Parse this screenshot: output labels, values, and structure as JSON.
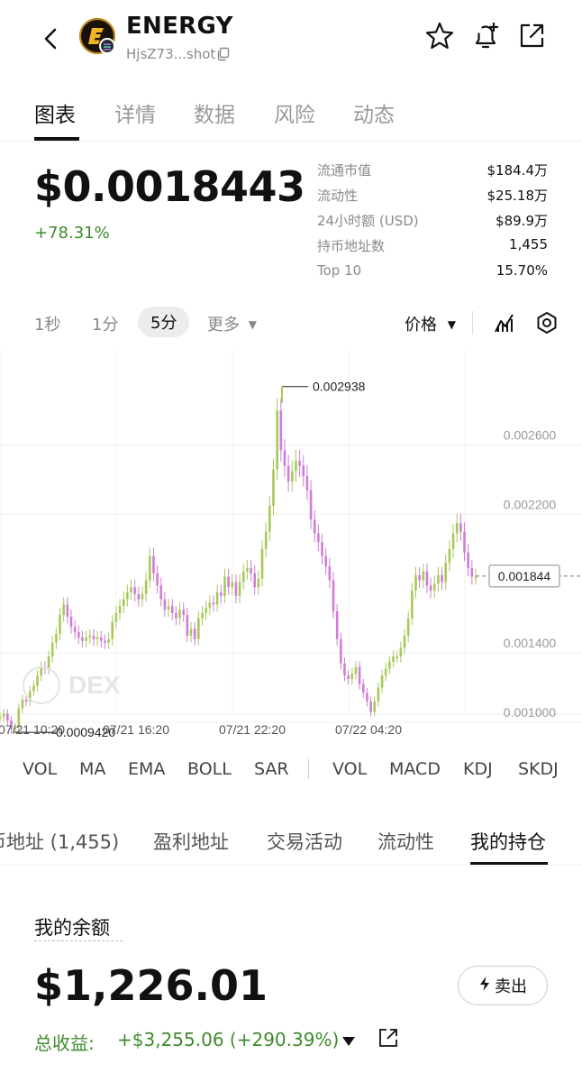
{
  "header": {
    "token_name": "ENERGY",
    "address": "HjsZ73...shot",
    "icons": [
      "back-arrow-icon",
      "star-icon",
      "bell-plus-icon",
      "share-external-icon",
      "copy-icon"
    ]
  },
  "tabs": [
    "图表",
    "详情",
    "数据",
    "风险",
    "动态"
  ],
  "active_tab": "图表",
  "price": {
    "value": "$0.0018443",
    "change": "+78.31%"
  },
  "stats": [
    {
      "label": "流通市值",
      "value": "$184.4万"
    },
    {
      "label": "流动性",
      "value": "$25.18万"
    },
    {
      "label": "24小时额 (USD)",
      "value": "$89.9万"
    },
    {
      "label": "持币地址数",
      "value": "1,455"
    },
    {
      "label": "Top 10",
      "value": "15.70%"
    }
  ],
  "intervals": [
    "1秒",
    "1分",
    "5分",
    "更多"
  ],
  "active_interval": "5分",
  "price_mode": "价格",
  "chart_data": {
    "type": "line",
    "x_ticks": [
      "07/21 10:20",
      "07/21 16:20",
      "07/21 22:20",
      "07/22 04:20"
    ],
    "y_ticks": [
      0.0026,
      0.0022,
      0.0014,
      0.001
    ],
    "y_tick_labels": [
      "0.002600",
      "0.002200",
      "0.001400",
      "0.001000"
    ],
    "ylim": [
      0.00087,
      0.00315
    ],
    "high_label": "0.002938",
    "low_label": "0.0009420",
    "current_label": "0.001844",
    "watermark": "DEX",
    "colors": {
      "up": "#a8c85a",
      "down": "#d27cd6"
    },
    "series": [
      {
        "values": [
          0.00103,
          0.00105,
          0.00101,
          0.00096,
          0.00097,
          0.00108,
          0.00113,
          0.00112,
          0.00118,
          0.00121,
          0.00127,
          0.00132,
          0.00131,
          0.00138,
          0.00146,
          0.00151,
          0.00162,
          0.00168,
          0.00161,
          0.00155,
          0.00152,
          0.00149,
          0.00147,
          0.00149,
          0.0015,
          0.00148,
          0.00149,
          0.00147,
          0.00146,
          0.00148,
          0.00158,
          0.00163,
          0.00167,
          0.00171,
          0.00175,
          0.00178,
          0.00174,
          0.00171,
          0.00174,
          0.00182,
          0.00196,
          0.00186,
          0.00179,
          0.00171,
          0.00165,
          0.00167,
          0.00163,
          0.0016,
          0.00165,
          0.00162,
          0.0015,
          0.00154,
          0.00148,
          0.0016,
          0.00163,
          0.00166,
          0.00169,
          0.00168,
          0.00175,
          0.00173,
          0.00184,
          0.00178,
          0.00181,
          0.00173,
          0.00181,
          0.00187,
          0.00189,
          0.00186,
          0.00178,
          0.00183,
          0.002,
          0.0021,
          0.00225,
          0.00246,
          0.0028,
          0.00257,
          0.00248,
          0.00239,
          0.00245,
          0.00251,
          0.00248,
          0.00242,
          0.00234,
          0.00217,
          0.00209,
          0.00204,
          0.00196,
          0.0019,
          0.00182,
          0.00164,
          0.00148,
          0.00134,
          0.00127,
          0.00125,
          0.00128,
          0.00132,
          0.00122,
          0.00117,
          0.00112,
          0.00106,
          0.00112,
          0.0012,
          0.00127,
          0.00131,
          0.00135,
          0.00138,
          0.00138,
          0.00143,
          0.0015,
          0.0016,
          0.00176,
          0.00185,
          0.00182,
          0.00187,
          0.00179,
          0.00176,
          0.0018,
          0.00185,
          0.00181,
          0.00192,
          0.002,
          0.00209,
          0.00215,
          0.0021,
          0.00198,
          0.00189,
          0.00184,
          0.00184
        ]
      }
    ]
  },
  "indicators_left": [
    "VOL",
    "MA",
    "EMA",
    "BOLL",
    "SAR"
  ],
  "indicators_right": [
    "VOL",
    "MACD",
    "KDJ",
    "SKDJ"
  ],
  "lower_tabs": [
    "币地址 (1,455)",
    "盈利地址",
    "交易活动",
    "流动性",
    "我的持仓"
  ],
  "active_lower_tab": "我的持仓",
  "holdings": {
    "balance_label": "我的余额",
    "balance": "$1,226.01",
    "sell_label": "卖出",
    "pnl_label": "总收益:",
    "pnl_value": "+$3,255.06 (+290.39%)"
  }
}
